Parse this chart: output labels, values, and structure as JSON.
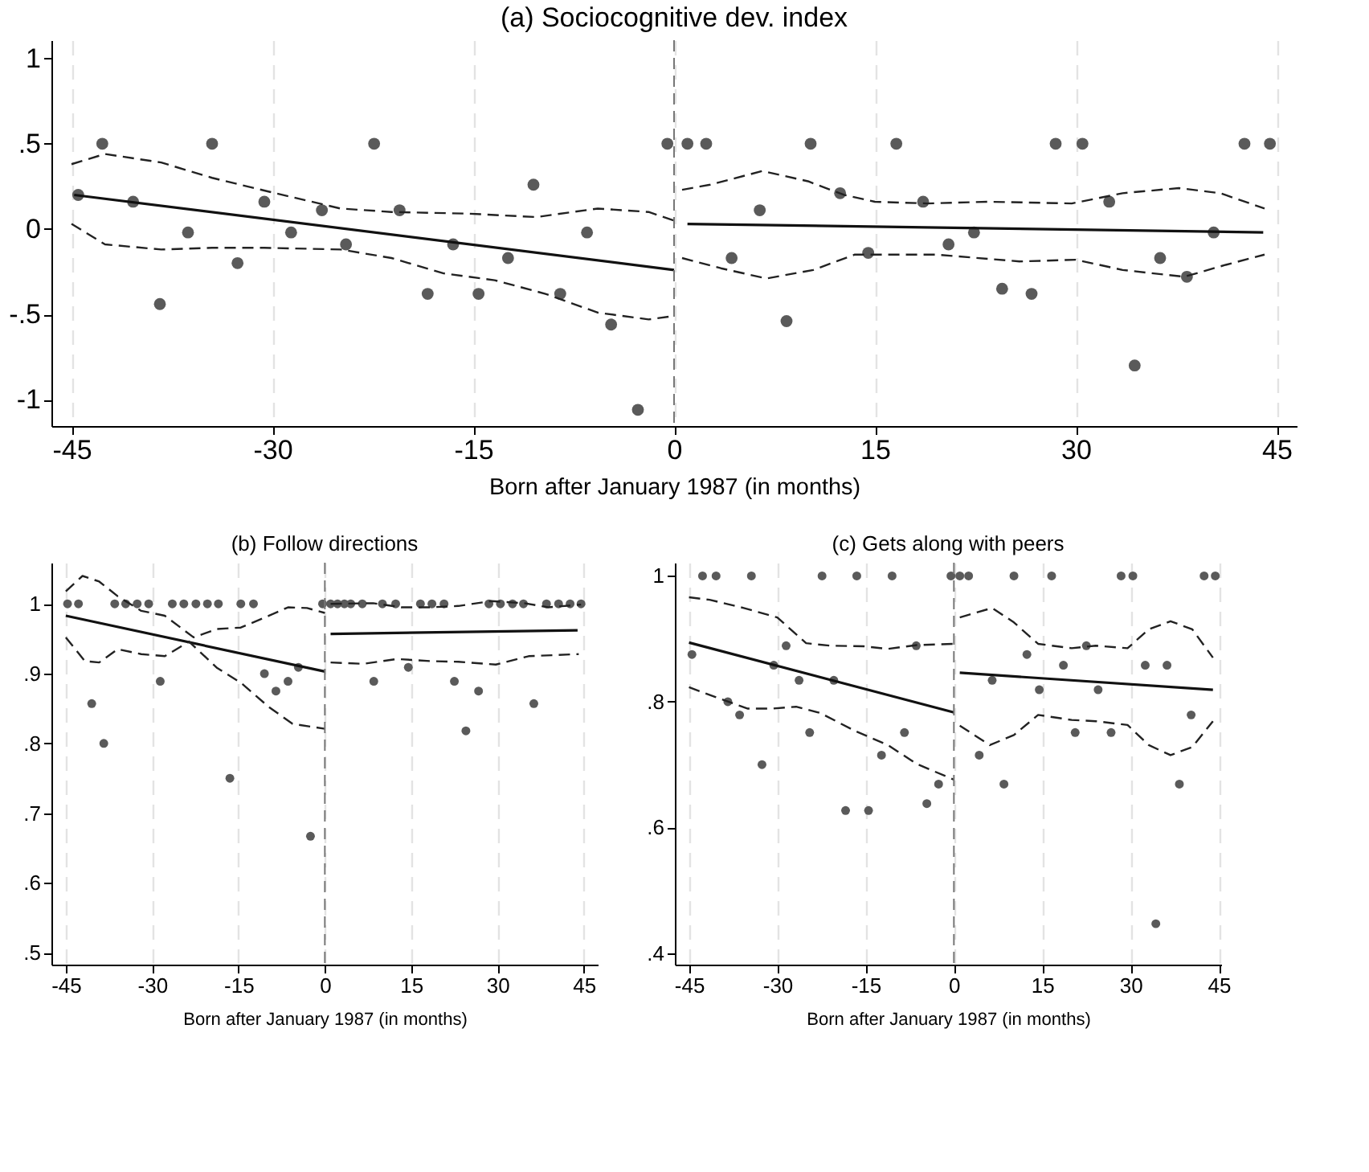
{
  "chart_data": [
    {
      "type": "scatter",
      "title": "(a) Sociocognitive dev. index",
      "xlabel": "Born after January 1987 (in months)",
      "xlim": [
        -46.5,
        46.5
      ],
      "xticks": [
        -45,
        -30,
        -15,
        0,
        15,
        30,
        45
      ],
      "ylim": [
        -1.155,
        1.107
      ],
      "yticks": [
        1,
        {
          "value": 0.5,
          "label": ".5"
        },
        0,
        {
          "value": -0.5,
          "label": "-.5"
        },
        -1
      ],
      "grid": "x",
      "ref_lines": [
        {
          "axis": "x",
          "value": 0,
          "color": "#777777",
          "line_style": "dashed"
        }
      ],
      "series": [
        {
          "marker": "circle",
          "color": "#5a5a5a",
          "x": [
            -44.5,
            -42.7,
            -40.4,
            -38.4,
            -36.3,
            -34.5,
            -32.6,
            -30.6,
            -28.6,
            -26.3,
            -24.5,
            -22.4,
            -20.5,
            -18.4,
            -16.5,
            -14.6,
            -12.4,
            -10.5,
            -8.5,
            -6.5,
            -4.7,
            -2.7,
            -0.5,
            1.0,
            2.4,
            4.3,
            6.4,
            8.4,
            10.2,
            12.4,
            14.5,
            16.6,
            18.6,
            20.5,
            22.4,
            24.5,
            26.7,
            28.5,
            30.5,
            32.5,
            34.4,
            36.3,
            38.3,
            40.3,
            42.6,
            44.5
          ],
          "values": [
            0.2,
            0.5,
            0.16,
            -0.44,
            -0.02,
            0.5,
            -0.2,
            0.16,
            -0.02,
            0.11,
            -0.09,
            0.5,
            0.11,
            -0.38,
            -0.09,
            -0.38,
            -0.17,
            0.26,
            -0.38,
            -0.02,
            -0.56,
            -1.06,
            0.5,
            0.5,
            0.5,
            -0.17,
            0.11,
            -0.54,
            0.5,
            0.21,
            -0.14,
            0.5,
            0.16,
            -0.09,
            -0.02,
            -0.35,
            -0.38,
            0.5,
            0.5,
            0.16,
            -0.8,
            -0.17,
            -0.28,
            -0.02,
            0.5,
            0.5
          ]
        },
        {
          "type": "line",
          "line_style": "solid",
          "color": "#111111",
          "x": [
            -44.8,
            0
          ],
          "values": [
            0.2,
            -0.24
          ]
        },
        {
          "type": "line",
          "line_style": "solid",
          "color": "#111111",
          "x": [
            1,
            44
          ],
          "values": [
            0.03,
            -0.02
          ]
        },
        {
          "type": "line",
          "line_style": "dashed",
          "color": "#222222",
          "x": [
            -45,
            -42.5,
            -38.3,
            -34.5,
            -30.3,
            -24.9,
            -21.1,
            -15.3,
            -10.3,
            -5.7,
            -1.9,
            0
          ],
          "values": [
            0.38,
            0.44,
            0.39,
            0.3,
            0.22,
            0.12,
            0.1,
            0.09,
            0.07,
            0.12,
            0.1,
            0.05
          ]
        },
        {
          "type": "line",
          "line_style": "dashed",
          "color": "#222222",
          "x": [
            -45,
            -42.5,
            -38.3,
            -34.5,
            -30.6,
            -24.9,
            -21.1,
            -17.2,
            -13.4,
            -9.6,
            -5.7,
            -1.9,
            0
          ],
          "values": [
            0.03,
            -0.09,
            -0.12,
            -0.11,
            -0.11,
            -0.12,
            -0.17,
            -0.26,
            -0.3,
            -0.38,
            -0.49,
            -0.53,
            -0.51
          ]
        },
        {
          "type": "line",
          "line_style": "dashed",
          "color": "#222222",
          "x": [
            0.6,
            2.7,
            6.6,
            10,
            12.7,
            15,
            18.9,
            23.5,
            29.7,
            33.5,
            37.7,
            40.8,
            44.1
          ],
          "values": [
            0.23,
            0.26,
            0.34,
            0.28,
            0.2,
            0.16,
            0.15,
            0.16,
            0.15,
            0.21,
            0.24,
            0.21,
            0.12
          ]
        },
        {
          "type": "line",
          "line_style": "dashed",
          "color": "#222222",
          "x": [
            0.6,
            3.5,
            6.9,
            10.4,
            13.5,
            15.8,
            19.6,
            25.8,
            30,
            33.5,
            38.1,
            41.2,
            44.1
          ],
          "values": [
            -0.17,
            -0.23,
            -0.29,
            -0.24,
            -0.15,
            -0.15,
            -0.15,
            -0.19,
            -0.18,
            -0.24,
            -0.28,
            -0.21,
            -0.15
          ]
        }
      ]
    },
    {
      "type": "scatter",
      "title": "(b) Follow directions",
      "xlabel": "Born after January 1987 (in months)",
      "xlim": [
        -47.5,
        47.4
      ],
      "xticks": [
        -45,
        -30,
        -15,
        0,
        15,
        30,
        45
      ],
      "ylim": [
        0.483,
        1.059
      ],
      "yticks": [
        1,
        {
          "value": 0.9,
          "label": ".9"
        },
        {
          "value": 0.8,
          "label": ".8"
        },
        {
          "value": 0.7,
          "label": ".7"
        },
        {
          "value": 0.6,
          "label": ".6"
        },
        {
          "value": 0.5,
          "label": ".5"
        }
      ],
      "grid": "x",
      "ref_lines": [
        {
          "axis": "x",
          "value": 0,
          "color": "#777777",
          "line_style": "dashed"
        }
      ],
      "series": [
        {
          "marker": "circle",
          "color": "#5a5a5a",
          "x": [
            -44.7,
            -42.8,
            -36.5,
            -34.6,
            -32.6,
            -30.6,
            -26.5,
            -24.5,
            -22.4,
            -20.4,
            -18.5,
            -14.6,
            -12.4,
            -0.4,
            1.0,
            2.2,
            3.4,
            4.5,
            6.5,
            10.0,
            12.3,
            16.6,
            18.6,
            20.7,
            28.5,
            30.5,
            32.6,
            34.5,
            38.5,
            40.6,
            42.6,
            44.5,
            -40.5,
            -38.4,
            -28.6,
            -16.5,
            -10.5,
            -8.5,
            -6.4,
            -4.6,
            -2.5,
            8.5,
            14.5,
            22.5,
            24.5,
            26.7,
            36.3
          ],
          "values": [
            1,
            1,
            1,
            1,
            1,
            1,
            1,
            1,
            1,
            1,
            1,
            1,
            1,
            1,
            1,
            1,
            1,
            1,
            1,
            1,
            1,
            1,
            1,
            1,
            1,
            1,
            1,
            1,
            1,
            1,
            1,
            1,
            0.857,
            0.8,
            0.889,
            0.75,
            0.9,
            0.875,
            0.889,
            0.909,
            0.667,
            0.889,
            0.909,
            0.889,
            0.818,
            0.875,
            0.857
          ]
        },
        {
          "type": "line",
          "line_style": "solid",
          "color": "#111111",
          "x": [
            -45,
            0
          ],
          "values": [
            0.983,
            0.903
          ]
        },
        {
          "type": "line",
          "line_style": "solid",
          "color": "#111111",
          "x": [
            1,
            43.9
          ],
          "values": [
            0.957,
            0.962
          ]
        },
        {
          "type": "line",
          "line_style": "dashed",
          "color": "#222222",
          "x": [
            -45,
            -42.1,
            -39.2,
            -36,
            -31.9,
            -27.8,
            -22.8,
            -18.7,
            -14.6,
            -9.7,
            -6.4,
            -3.1,
            0
          ],
          "values": [
            1.018,
            1.04,
            1.032,
            1.011,
            0.99,
            0.983,
            0.952,
            0.964,
            0.966,
            0.983,
            0.995,
            0.994,
            0.987
          ]
        },
        {
          "type": "line",
          "line_style": "dashed",
          "color": "#222222",
          "x": [
            -45,
            -41.7,
            -39.2,
            -36,
            -31.9,
            -27.8,
            -23.6,
            -18.7,
            -14.6,
            -9.7,
            -5.6,
            0
          ],
          "values": [
            0.952,
            0.918,
            0.916,
            0.935,
            0.928,
            0.925,
            0.946,
            0.908,
            0.887,
            0.852,
            0.828,
            0.821
          ]
        },
        {
          "type": "line",
          "line_style": "dashed",
          "color": "#222222",
          "x": [
            1,
            8.4,
            13.3,
            18.2,
            23.2,
            28.9,
            34.6,
            38.8,
            44.5
          ],
          "values": [
            1.0,
            1.001,
            0.995,
            0.995,
            0.997,
            1.004,
            1.001,
            0.995,
            0.999
          ]
        },
        {
          "type": "line",
          "line_style": "dashed",
          "color": "#222222",
          "x": [
            1,
            6.7,
            12.5,
            18.2,
            23.2,
            29.7,
            35.4,
            44.1
          ],
          "values": [
            0.916,
            0.914,
            0.921,
            0.918,
            0.917,
            0.913,
            0.925,
            0.928
          ]
        }
      ]
    },
    {
      "type": "scatter",
      "title": "(c) Gets along with peers",
      "xlabel": "Born after January 1987 (in months)",
      "xlim": [
        -47.4,
        45.4
      ],
      "xticks": [
        -45,
        -30,
        -15,
        0,
        15,
        30,
        45
      ],
      "ylim": [
        0.382,
        1.021
      ],
      "yticks": [
        1,
        {
          "value": 0.8,
          "label": ".8"
        },
        {
          "value": 0.6,
          "label": ".6"
        },
        {
          "value": 0.4,
          "label": ".4"
        }
      ],
      "grid": "x",
      "ref_lines": [
        {
          "axis": "x",
          "value": 0,
          "color": "#777777",
          "line_style": "dashed"
        }
      ],
      "series": [
        {
          "marker": "circle",
          "color": "#5a5a5a",
          "x": [
            -42.7,
            -40.4,
            -34.4,
            -22.4,
            -16.5,
            -10.5,
            -0.5,
            1.0,
            2.5,
            10.2,
            16.6,
            28.4,
            30.4,
            42.5,
            44.4,
            -44.5,
            -38.4,
            -36.4,
            -32.6,
            -30.6,
            -28.5,
            -26.3,
            -24.5,
            -20.4,
            -18.4,
            -14.5,
            -12.3,
            -8.4,
            -6.4,
            -4.6,
            -2.6,
            4.3,
            6.5,
            8.5,
            12.4,
            14.5,
            18.6,
            20.6,
            22.5,
            24.5,
            26.7,
            32.5,
            34.3,
            36.2,
            38.3,
            40.3
          ],
          "values": [
            1,
            1,
            1,
            1,
            1,
            1,
            1,
            1,
            1,
            1,
            1,
            1,
            1,
            1,
            1,
            0.875,
            0.8,
            0.779,
            0.7,
            0.858,
            0.889,
            0.834,
            0.751,
            0.834,
            0.627,
            0.627,
            0.715,
            0.751,
            0.889,
            0.638,
            0.669,
            0.715,
            0.834,
            0.669,
            0.875,
            0.819,
            0.858,
            0.751,
            0.889,
            0.819,
            0.751,
            0.858,
            0.447,
            0.858,
            0.669,
            0.779
          ]
        },
        {
          "type": "line",
          "line_style": "solid",
          "color": "#111111",
          "x": [
            -45,
            0
          ],
          "values": [
            0.894,
            0.783
          ]
        },
        {
          "type": "line",
          "line_style": "solid",
          "color": "#111111",
          "x": [
            1,
            44
          ],
          "values": [
            0.846,
            0.819
          ]
        },
        {
          "type": "line",
          "line_style": "dashed",
          "color": "#222222",
          "x": [
            -45,
            -41.5,
            -35.7,
            -30,
            -25.1,
            -21,
            -15.3,
            -11.2,
            -6.3,
            0
          ],
          "values": [
            0.966,
            0.962,
            0.949,
            0.934,
            0.893,
            0.889,
            0.888,
            0.884,
            0.89,
            0.892
          ]
        },
        {
          "type": "line",
          "line_style": "dashed",
          "color": "#222222",
          "x": [
            -45,
            -40.7,
            -35,
            -30.9,
            -26.8,
            -22.7,
            -16.9,
            -11.2,
            -6.3,
            0
          ],
          "values": [
            0.823,
            0.808,
            0.789,
            0.789,
            0.792,
            0.782,
            0.754,
            0.731,
            0.701,
            0.676
          ]
        },
        {
          "type": "line",
          "line_style": "dashed",
          "color": "#222222",
          "x": [
            1,
            6.5,
            10.2,
            14.3,
            20,
            24.1,
            29.5,
            33.1,
            36.8,
            40.5,
            44
          ],
          "values": [
            0.934,
            0.949,
            0.926,
            0.892,
            0.885,
            0.889,
            0.885,
            0.915,
            0.928,
            0.915,
            0.87
          ]
        },
        {
          "type": "line",
          "line_style": "dashed",
          "color": "#222222",
          "x": [
            1,
            6.1,
            10.2,
            14.3,
            20,
            24.1,
            29.5,
            33.1,
            36.8,
            40.5,
            44
          ],
          "values": [
            0.762,
            0.731,
            0.747,
            0.779,
            0.771,
            0.769,
            0.763,
            0.731,
            0.715,
            0.728,
            0.769
          ]
        }
      ]
    }
  ]
}
